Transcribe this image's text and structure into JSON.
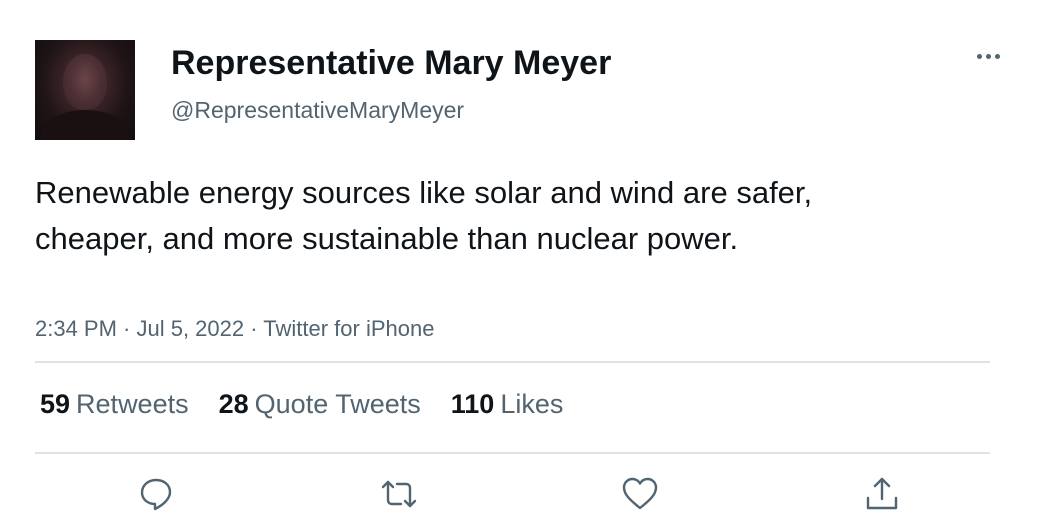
{
  "user": {
    "display_name": "Representative Mary Meyer",
    "handle": "@RepresentativeMaryMeyer"
  },
  "tweet": {
    "text": "Renewable energy sources like solar and wind are safer, cheaper, and more sustainable than nuclear power.",
    "meta": "2:34 PM · Jul 5, 2022 · Twitter for iPhone"
  },
  "stats": [
    {
      "value": "59",
      "label": "Retweets"
    },
    {
      "value": "28",
      "label": "Quote Tweets"
    },
    {
      "value": "110",
      "label": "Likes"
    }
  ],
  "actions": [
    "reply-icon",
    "retweet-icon",
    "like-icon",
    "share-icon"
  ],
  "colors": {
    "text": "#0f1419",
    "secondary": "#536471",
    "divider": "#dfe3e6"
  }
}
